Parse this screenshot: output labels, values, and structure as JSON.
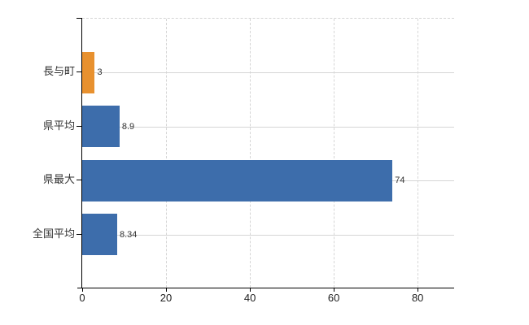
{
  "chart_data": {
    "type": "bar",
    "orientation": "horizontal",
    "title": "",
    "xlabel": "",
    "ylabel": "",
    "categories": [
      "長与町",
      "県平均",
      "県最大",
      "全国平均"
    ],
    "values": [
      3,
      8.9,
      74,
      8.34
    ],
    "value_labels": [
      "3",
      "8.9",
      "74",
      "8.34"
    ],
    "bar_colors": [
      "#e8912f",
      "#3d6dab",
      "#3d6dab",
      "#3d6dab"
    ],
    "x_ticks": [
      0,
      20,
      40,
      60,
      80
    ],
    "x_tick_labels": [
      "0",
      "20",
      "40",
      "60",
      "80"
    ],
    "xlim": [
      0,
      88.7
    ],
    "grid": true,
    "legend": false,
    "colors": {
      "highlight_bar": "#e8912f",
      "default_bar": "#3d6dab",
      "gridline": "#d6d6d6",
      "axis": "#000000",
      "text": "#333333",
      "background": "#ffffff"
    }
  }
}
